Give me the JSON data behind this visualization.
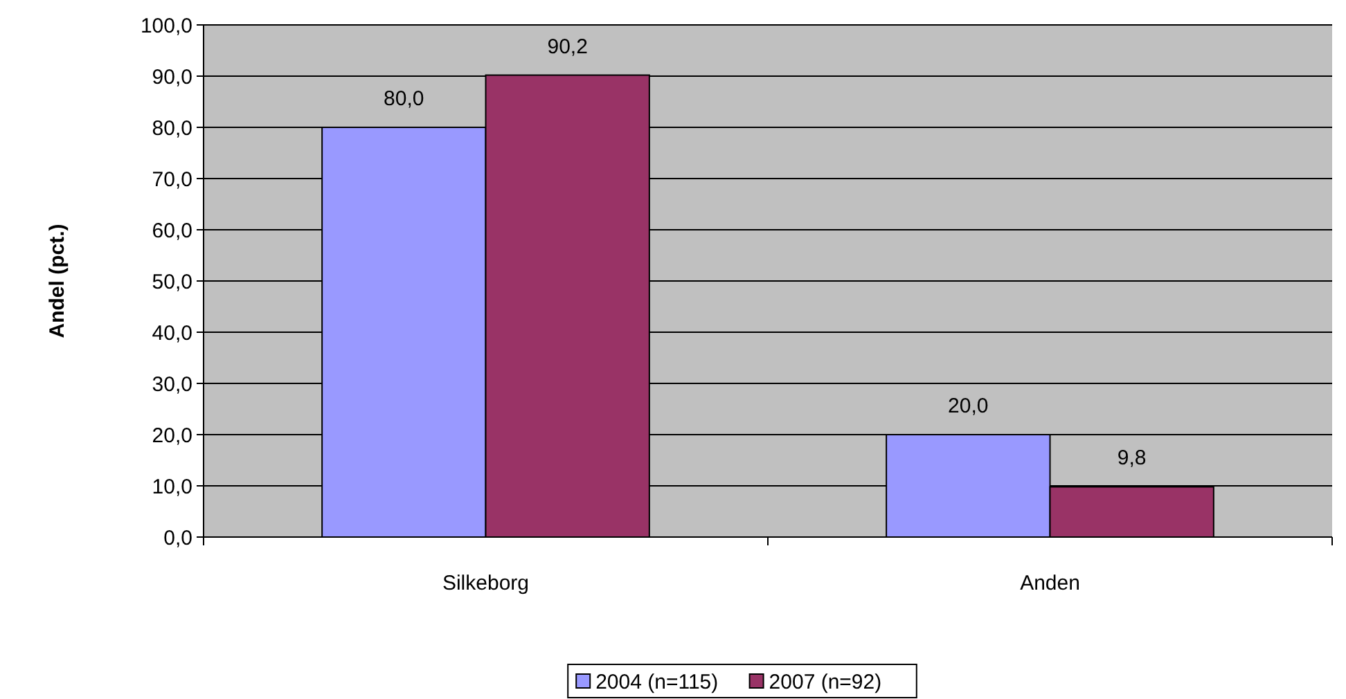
{
  "chart_data": {
    "type": "bar",
    "ylabel": "Andel (pct.)",
    "categories": [
      "Silkeborg",
      "Anden"
    ],
    "series": [
      {
        "name": "2004 (n=115)",
        "color": "#9999ff",
        "values": [
          80.0,
          20.0
        ],
        "value_labels": [
          "80,0",
          "20,0"
        ]
      },
      {
        "name": "2007 (n=92)",
        "color": "#993366",
        "values": [
          90.2,
          9.8
        ],
        "value_labels": [
          "90,2",
          "9,8"
        ]
      }
    ],
    "ylim": [
      0,
      100
    ],
    "yticks": [
      {
        "value": 0,
        "label": "0,0"
      },
      {
        "value": 10,
        "label": "10,0"
      },
      {
        "value": 20,
        "label": "20,0"
      },
      {
        "value": 30,
        "label": "30,0"
      },
      {
        "value": 40,
        "label": "40,0"
      },
      {
        "value": 50,
        "label": "50,0"
      },
      {
        "value": 60,
        "label": "60,0"
      },
      {
        "value": 70,
        "label": "70,0"
      },
      {
        "value": 80,
        "label": "80,0"
      },
      {
        "value": 90,
        "label": "90,0"
      },
      {
        "value": 100,
        "label": "100,0"
      }
    ],
    "grid": "y",
    "legend": "bottom"
  }
}
